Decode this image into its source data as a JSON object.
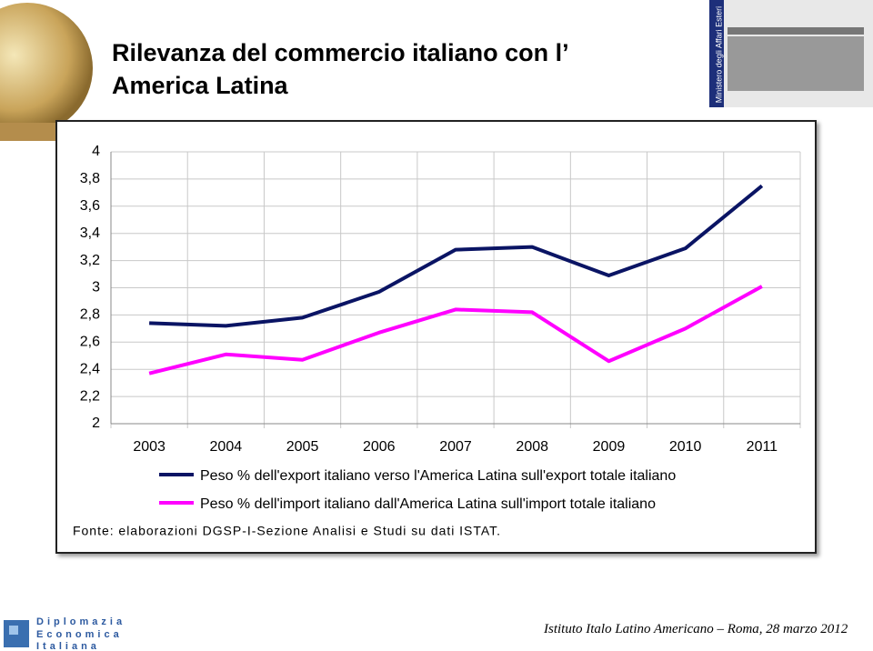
{
  "slide": {
    "logo_lines": [
      "Diplomazia",
      "Economica",
      "Italiana"
    ],
    "ministry": "Ministero degli Affari Esteri",
    "footer": "Istituto Italo Latino Americano – Roma, 28 marzo 2012"
  },
  "chart_data": {
    "type": "line",
    "title": "Rilevanza del commercio italiano con l’ America Latina",
    "categories": [
      "2003",
      "2004",
      "2005",
      "2006",
      "2007",
      "2008",
      "2009",
      "2010",
      "2011"
    ],
    "series": [
      {
        "name": "Peso % dell'export italiano verso l'America Latina sull'export totale italiano",
        "color": "#0a1464",
        "values": [
          2.74,
          2.72,
          2.78,
          2.97,
          3.28,
          3.3,
          3.09,
          3.29,
          3.75
        ]
      },
      {
        "name": "Peso % dell'import italiano dall'America Latina sull'import totale italiano",
        "color": "#ff00ff",
        "values": [
          2.37,
          2.51,
          2.47,
          2.67,
          2.84,
          2.82,
          2.46,
          2.7,
          3.01
        ]
      }
    ],
    "ylim": [
      2,
      4
    ],
    "yticks": [
      2,
      {
        "value": 2.2,
        "label": "2,2"
      },
      {
        "value": 2.4,
        "label": "2,4"
      },
      {
        "value": 2.6,
        "label": "2,6"
      },
      {
        "value": 2.8,
        "label": "2,8"
      },
      3,
      {
        "value": 3.2,
        "label": "3,2"
      },
      {
        "value": 3.4,
        "label": "3,4"
      },
      {
        "value": 3.6,
        "label": "3,6"
      },
      {
        "value": 3.8,
        "label": "3,8"
      },
      4
    ],
    "grid": true,
    "source": "Fonte: elaborazioni DGSP-I-Sezione Analisi e Studi su dati ISTAT."
  }
}
